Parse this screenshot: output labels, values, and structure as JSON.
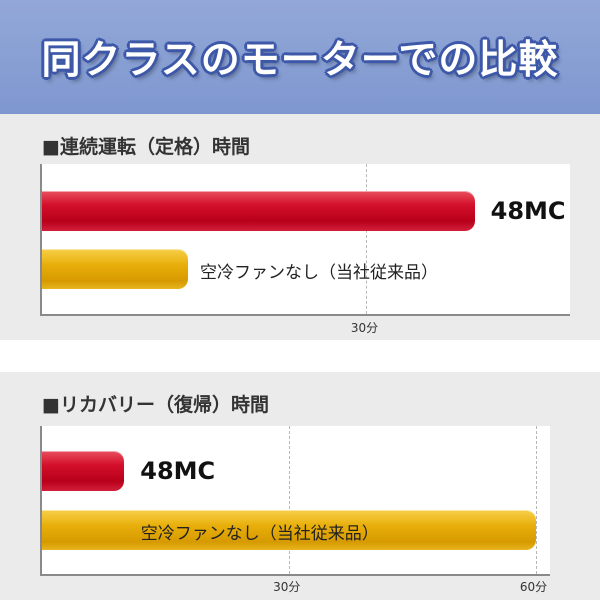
{
  "header": {
    "title": "同クラスのモーターでの比較"
  },
  "chart_data": [
    {
      "type": "bar",
      "title": "■連続運転（定格）時間",
      "orientation": "horizontal",
      "categories": [
        "48MC",
        "空冷ファンなし（当社従来品）"
      ],
      "values": [
        40,
        13.5
      ],
      "unit": "分",
      "xlim": [
        0,
        49
      ],
      "ticks": [
        "30分"
      ],
      "tick_values": [
        30
      ],
      "grid": true,
      "colors": [
        "#d4102a",
        "#e8ae0a"
      ]
    },
    {
      "type": "bar",
      "title": "■リカバリー（復帰）時間",
      "orientation": "horizontal",
      "categories": [
        "48MC",
        "空冷ファンなし（当社従来品）"
      ],
      "values": [
        10,
        60
      ],
      "unit": "分",
      "xlim": [
        0,
        62
      ],
      "ticks": [
        "30分",
        "60分"
      ],
      "tick_values": [
        30,
        60
      ],
      "grid": true,
      "colors": [
        "#d4102a",
        "#e8ae0a"
      ]
    }
  ]
}
